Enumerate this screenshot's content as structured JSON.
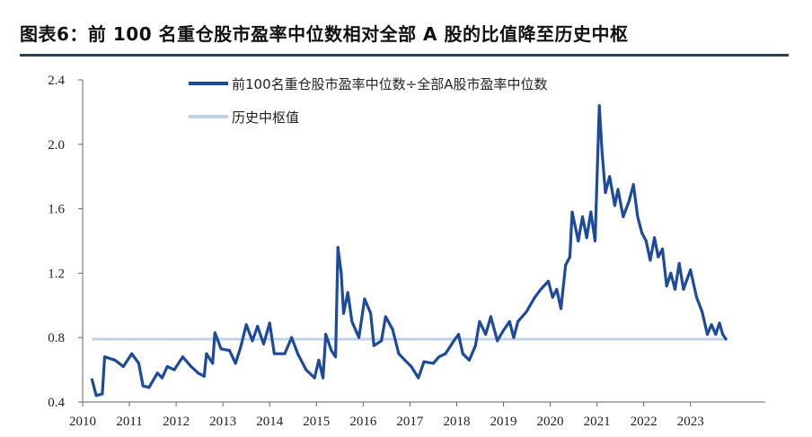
{
  "title": "图表6：前 100 名重仓股市盈率中位数相对全部 A 股的比值降至历史中枢",
  "colors": {
    "series": "#1d4a9a",
    "median": "#c3d0e6",
    "divider": "#2b4357"
  },
  "chart_data": {
    "type": "line",
    "title": "图表6：前 100 名重仓股市盈率中位数相对全部 A 股的比值降至历史中枢",
    "xlabel": "",
    "ylabel": "",
    "xlim": [
      2010,
      2024.6
    ],
    "ylim": [
      0.4,
      2.4
    ],
    "yticks": [
      "0.4",
      "0.8",
      "1.2",
      "1.6",
      "2.0",
      "2.4"
    ],
    "xticks": [
      "2010",
      "2011",
      "2012",
      "2013",
      "2014",
      "2015",
      "2016",
      "2017",
      "2018",
      "2019",
      "2020",
      "2021",
      "2022",
      "2023"
    ],
    "legend_position": "top-center",
    "series": [
      {
        "name": "前100名重仓股市盈率中位数÷全部A股市盈率中位数",
        "x": [
          2010.2,
          2010.29,
          2010.42,
          2010.47,
          2010.69,
          2010.87,
          2011.05,
          2011.2,
          2011.29,
          2011.42,
          2011.6,
          2011.7,
          2011.81,
          2011.96,
          2012.14,
          2012.32,
          2012.47,
          2012.6,
          2012.65,
          2012.78,
          2012.83,
          2012.96,
          2013.14,
          2013.27,
          2013.38,
          2013.5,
          2013.63,
          2013.74,
          2013.87,
          2014.0,
          2014.1,
          2014.32,
          2014.47,
          2014.6,
          2014.78,
          2014.96,
          2015.05,
          2015.14,
          2015.2,
          2015.32,
          2015.41,
          2015.46,
          2015.53,
          2015.58,
          2015.67,
          2015.76,
          2015.91,
          2016.03,
          2016.16,
          2016.23,
          2016.39,
          2016.48,
          2016.63,
          2016.76,
          2016.89,
          2017.03,
          2017.18,
          2017.3,
          2017.5,
          2017.62,
          2017.76,
          2017.94,
          2018.04,
          2018.13,
          2018.27,
          2018.4,
          2018.49,
          2018.62,
          2018.73,
          2018.87,
          2018.99,
          2019.13,
          2019.22,
          2019.31,
          2019.49,
          2019.67,
          2019.8,
          2019.96,
          2020.05,
          2020.14,
          2020.23,
          2020.33,
          2020.42,
          2020.47,
          2020.6,
          2020.69,
          2020.78,
          2020.87,
          2020.96,
          2021.05,
          2021.11,
          2021.18,
          2021.27,
          2021.38,
          2021.45,
          2021.56,
          2021.69,
          2021.78,
          2021.87,
          2021.96,
          2022.05,
          2022.14,
          2022.23,
          2022.31,
          2022.4,
          2022.49,
          2022.58,
          2022.67,
          2022.76,
          2022.85,
          2023.0,
          2023.13,
          2023.25,
          2023.36,
          2023.45,
          2023.54,
          2023.62,
          2023.69,
          2023.76
        ],
        "y": [
          0.54,
          0.44,
          0.45,
          0.68,
          0.66,
          0.62,
          0.7,
          0.64,
          0.5,
          0.49,
          0.58,
          0.55,
          0.62,
          0.6,
          0.68,
          0.62,
          0.58,
          0.56,
          0.7,
          0.64,
          0.83,
          0.73,
          0.72,
          0.64,
          0.74,
          0.88,
          0.78,
          0.87,
          0.76,
          0.89,
          0.7,
          0.7,
          0.8,
          0.7,
          0.6,
          0.55,
          0.66,
          0.55,
          0.82,
          0.72,
          0.68,
          1.36,
          1.2,
          0.95,
          1.08,
          0.9,
          0.8,
          1.04,
          0.95,
          0.75,
          0.78,
          0.93,
          0.85,
          0.7,
          0.66,
          0.62,
          0.55,
          0.65,
          0.64,
          0.68,
          0.7,
          0.78,
          0.82,
          0.7,
          0.66,
          0.75,
          0.9,
          0.82,
          0.93,
          0.78,
          0.84,
          0.9,
          0.8,
          0.9,
          0.96,
          1.05,
          1.1,
          1.15,
          1.05,
          1.1,
          0.98,
          1.25,
          1.3,
          1.58,
          1.4,
          1.55,
          1.42,
          1.58,
          1.4,
          2.24,
          1.95,
          1.7,
          1.8,
          1.62,
          1.72,
          1.55,
          1.65,
          1.75,
          1.55,
          1.45,
          1.4,
          1.28,
          1.42,
          1.3,
          1.35,
          1.12,
          1.2,
          1.1,
          1.26,
          1.1,
          1.22,
          1.05,
          0.96,
          0.82,
          0.88,
          0.82,
          0.89,
          0.82,
          0.79
        ]
      },
      {
        "name": "历史中枢值",
        "x": [
          2010.2,
          2023.76
        ],
        "y": [
          0.79,
          0.79
        ]
      }
    ]
  }
}
